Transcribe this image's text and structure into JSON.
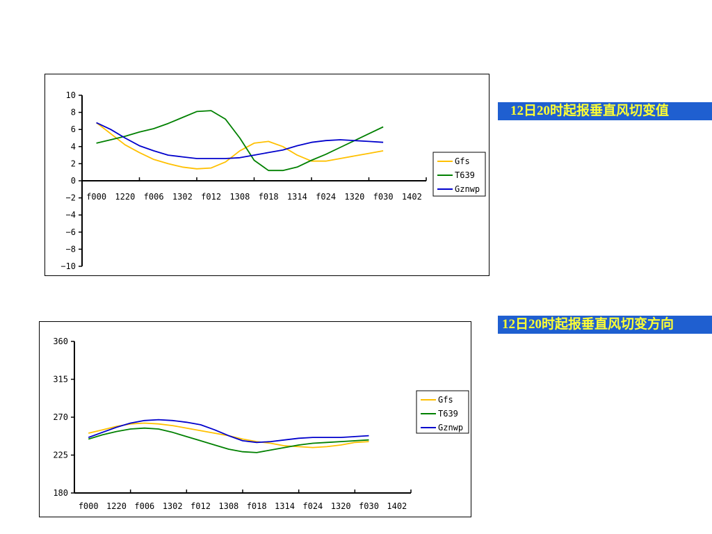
{
  "titles": {
    "chart1": "12日20时起报垂直风切变值",
    "chart2": "12日20时起报垂直风切变方向"
  },
  "colors": {
    "Gfs": "#ffc000",
    "T639": "#008000",
    "Gznwp": "#0000cc"
  },
  "chart_data": [
    {
      "type": "line",
      "title": "",
      "xlabel": "",
      "ylabel": "",
      "categories": [
        "f000",
        "1220",
        "f006",
        "1302",
        "f012",
        "1308",
        "f018",
        "1314",
        "f024",
        "1320",
        "f030",
        "1402"
      ],
      "x": [
        1,
        2,
        3,
        4,
        5,
        6,
        7,
        8,
        9,
        10,
        11,
        12,
        13,
        14,
        15,
        16,
        17,
        18,
        19,
        20,
        21
      ],
      "ylim": [
        -10,
        10
      ],
      "yticks": [
        -10,
        -8,
        -6,
        -4,
        -2,
        0,
        2,
        4,
        6,
        8,
        10
      ],
      "legend": "right",
      "series": [
        {
          "name": "Gfs",
          "values": [
            6.8,
            5.5,
            4.2,
            3.3,
            2.5,
            2.0,
            1.6,
            1.4,
            1.5,
            2.2,
            3.5,
            4.4,
            4.6,
            4.0,
            3.0,
            2.3,
            2.3,
            2.6,
            2.9,
            3.2,
            3.5
          ]
        },
        {
          "name": "T639",
          "values": [
            4.4,
            4.8,
            5.2,
            5.7,
            6.1,
            6.7,
            7.4,
            8.1,
            8.2,
            7.2,
            5.0,
            2.4,
            1.2,
            1.2,
            1.6,
            2.4,
            3.1,
            3.9,
            4.7,
            5.5,
            6.3
          ]
        },
        {
          "name": "Gznwp",
          "values": [
            6.8,
            6.0,
            5.0,
            4.1,
            3.5,
            3.0,
            2.8,
            2.6,
            2.6,
            2.6,
            2.7,
            3.0,
            3.3,
            3.6,
            4.1,
            4.5,
            4.7,
            4.8,
            4.7,
            4.6,
            4.5
          ]
        }
      ]
    },
    {
      "type": "line",
      "title": "",
      "xlabel": "",
      "ylabel": "",
      "categories": [
        "f000",
        "1220",
        "f006",
        "1302",
        "f012",
        "1308",
        "f018",
        "1314",
        "f024",
        "1320",
        "f030",
        "1402"
      ],
      "x": [
        1,
        2,
        3,
        4,
        5,
        6,
        7,
        8,
        9,
        10,
        11,
        12,
        13,
        14,
        15,
        16,
        17,
        18,
        19,
        20,
        21
      ],
      "ylim": [
        180,
        360
      ],
      "yticks": [
        180,
        225,
        270,
        315,
        360
      ],
      "legend": "right",
      "series": [
        {
          "name": "Gfs",
          "values": [
            251,
            255,
            259,
            262,
            263,
            262,
            260,
            257,
            254,
            251,
            248,
            244,
            241,
            239,
            236,
            235,
            234,
            235,
            237,
            240,
            241
          ]
        },
        {
          "name": "T639",
          "values": [
            244,
            249,
            253,
            256,
            257,
            256,
            252,
            247,
            242,
            237,
            232,
            229,
            228,
            231,
            234,
            237,
            239,
            240,
            241,
            242,
            243
          ]
        },
        {
          "name": "Gznwp",
          "values": [
            246,
            252,
            258,
            263,
            266,
            267,
            266,
            264,
            261,
            255,
            248,
            242,
            240,
            241,
            243,
            245,
            246,
            246,
            246,
            247,
            248
          ]
        }
      ]
    }
  ]
}
